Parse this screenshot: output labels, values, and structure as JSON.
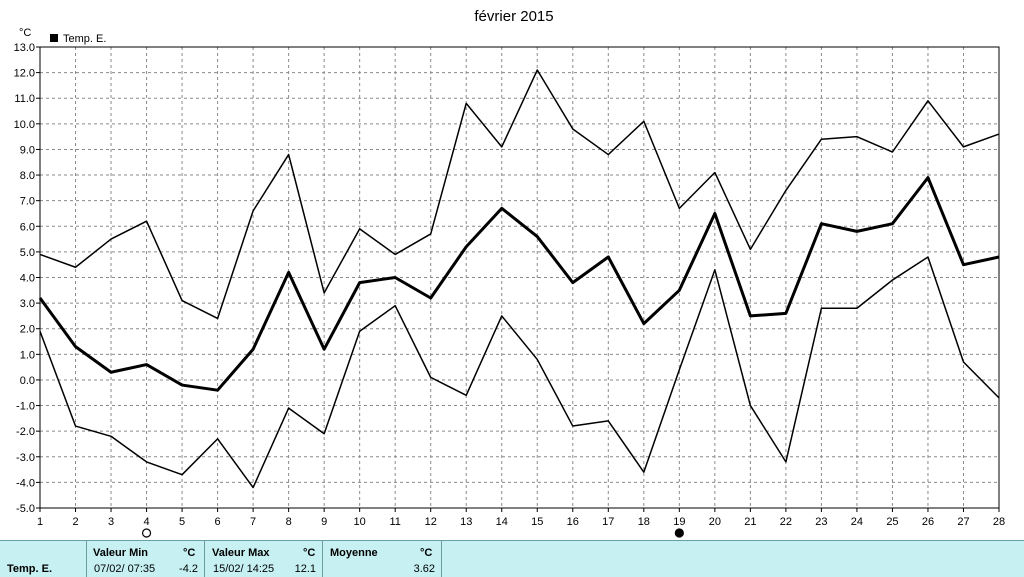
{
  "chart_data": {
    "type": "line",
    "title": "février 2015",
    "ylabel": "°C",
    "xlabel": "",
    "ylim": [
      -5.0,
      13.0
    ],
    "y_ticks": [
      "13.0",
      "12.0",
      "11.0",
      "10.0",
      "9.0",
      "8.0",
      "7.0",
      "6.0",
      "5.0",
      "4.0",
      "3.0",
      "2.0",
      "1.0",
      "0.0",
      "-1.0",
      "-2.0",
      "-3.0",
      "-4.0",
      "-5.0"
    ],
    "x": [
      1,
      2,
      3,
      4,
      5,
      6,
      7,
      8,
      9,
      10,
      11,
      12,
      13,
      14,
      15,
      16,
      17,
      18,
      19,
      20,
      21,
      22,
      23,
      24,
      25,
      26,
      27,
      28
    ],
    "legend": [
      "Temp. E."
    ],
    "legend_position": "top-left",
    "grid": true,
    "series": [
      {
        "name": "Temp. E.",
        "role": "max",
        "width": 1.5,
        "values": [
          4.9,
          4.4,
          5.5,
          6.2,
          3.1,
          2.4,
          6.6,
          8.8,
          3.4,
          5.9,
          4.9,
          5.7,
          10.8,
          9.1,
          12.1,
          9.8,
          8.8,
          10.1,
          6.7,
          8.1,
          5.1,
          7.4,
          9.4,
          9.5,
          8.9,
          10.9,
          9.1,
          9.6
        ]
      },
      {
        "role": "mean",
        "width": 3,
        "values": [
          3.2,
          1.3,
          0.3,
          0.6,
          -0.2,
          -0.4,
          1.2,
          4.2,
          1.2,
          3.8,
          4.0,
          3.2,
          5.2,
          6.7,
          5.6,
          3.8,
          4.8,
          2.2,
          3.5,
          6.5,
          2.5,
          2.6,
          6.1,
          5.8,
          6.1,
          7.9,
          4.5,
          4.8
        ]
      },
      {
        "role": "min",
        "width": 1.5,
        "values": [
          1.9,
          -1.8,
          -2.2,
          -3.2,
          -3.7,
          -2.3,
          -4.2,
          -1.1,
          -2.1,
          1.9,
          2.9,
          0.1,
          -0.6,
          2.5,
          0.8,
          -1.8,
          -1.6,
          -3.6,
          0.4,
          4.3,
          -1.0,
          -3.2,
          2.8,
          2.8,
          3.9,
          4.8,
          0.7,
          -0.7
        ]
      }
    ],
    "markers": [
      {
        "day": 4,
        "symbol": "open-circle"
      },
      {
        "day": 19,
        "symbol": "filled-circle"
      }
    ]
  },
  "stats": {
    "series_label": "Temp. E.",
    "min_header": "Valeur Min",
    "min_unit": "°C",
    "min_time": "07/02/  07:35",
    "min_value": "-4.2",
    "max_header": "Valeur Max",
    "max_unit": "°C",
    "max_time": "15/02/  14:25",
    "max_value": "12.1",
    "mean_header": "Moyenne",
    "mean_unit": "°C",
    "mean_value": "3.62"
  }
}
